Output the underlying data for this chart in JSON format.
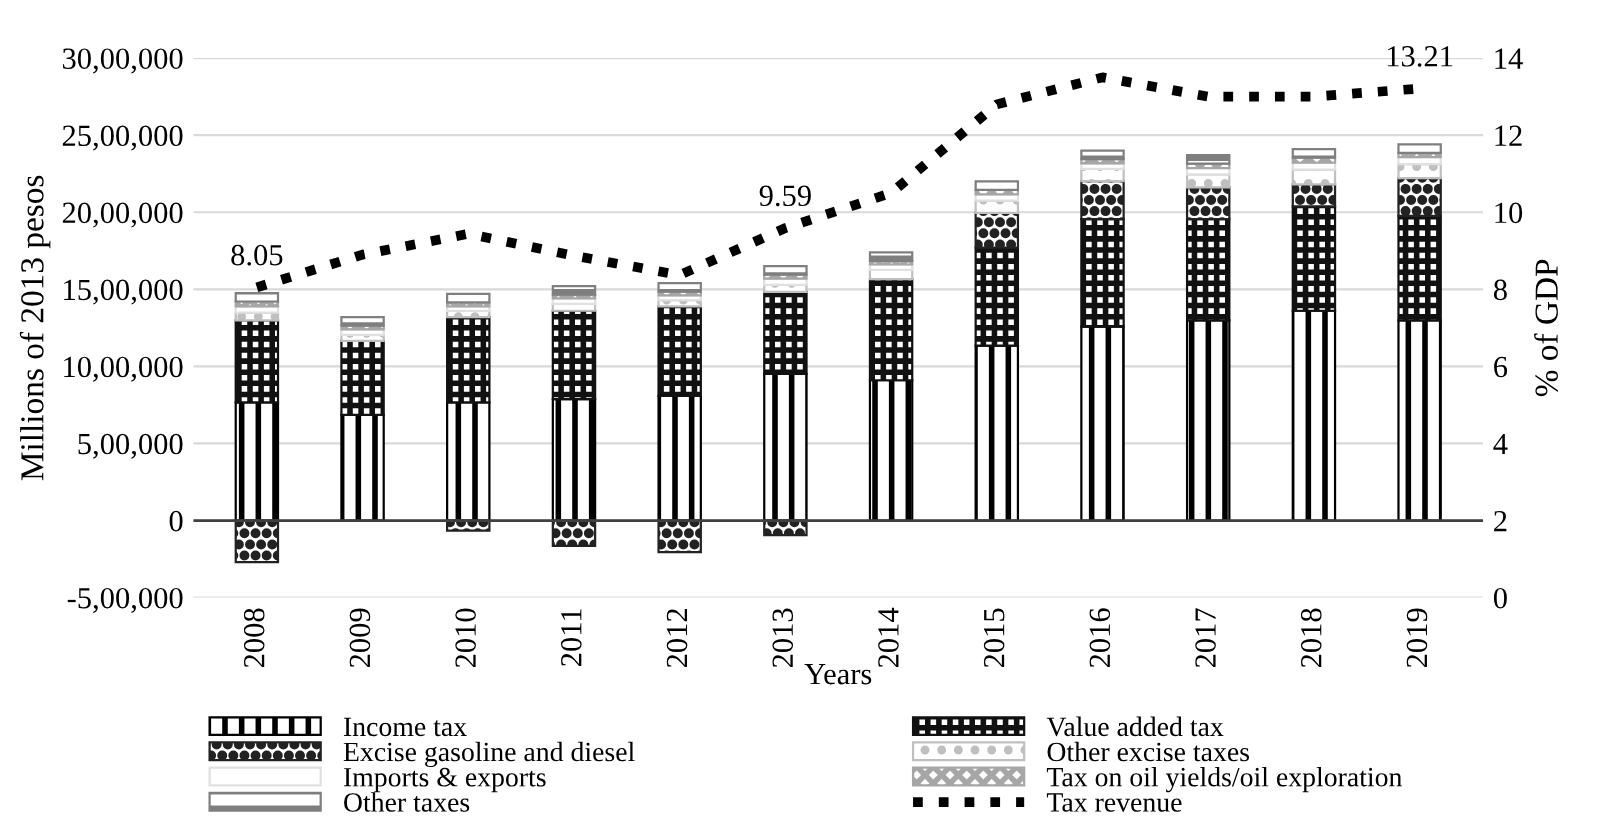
{
  "chart_data": {
    "type": "bar",
    "stacked": true,
    "xlabel": "Years",
    "ylabel": "Millions of 2013 pesos",
    "y2label": "% of GDP",
    "categories": [
      "2008",
      "2009",
      "2010",
      "2011",
      "2012",
      "2013",
      "2014",
      "2015",
      "2016",
      "2017",
      "2018",
      "2019"
    ],
    "series": [
      {
        "name": "Income tax",
        "color": "#000000",
        "values": [
          766000,
          685000,
          766000,
          787000,
          808000,
          951000,
          910000,
          1135000,
          1258000,
          1299000,
          1361000,
          1299000
        ]
      },
      {
        "name": "Value added tax",
        "color": "#111111",
        "values": [
          533000,
          480000,
          554000,
          574000,
          582000,
          533000,
          656000,
          636000,
          698000,
          657000,
          677000,
          677000
        ]
      },
      {
        "name": "Excise gasoline and diesel",
        "color": "#222222",
        "values": [
          -270000,
          0,
          -65000,
          -164000,
          -205000,
          -95000,
          0,
          225000,
          246000,
          205000,
          143000,
          246000
        ]
      },
      {
        "name": "Other excise taxes",
        "color": "#bfbfbf",
        "values": [
          50000,
          40000,
          40000,
          45000,
          40000,
          45000,
          60000,
          80000,
          80000,
          85000,
          95000,
          90000
        ]
      },
      {
        "name": "Imports & exports",
        "color": "#e0e0e0",
        "values": [
          40000,
          35000,
          30000,
          35000,
          30000,
          40000,
          35000,
          40000,
          35000,
          40000,
          45000,
          45000
        ]
      },
      {
        "name": "Tax on oil yields/oil exploration",
        "color": "#a6a6a6",
        "values": [
          32000,
          25000,
          25000,
          24000,
          25000,
          26000,
          24000,
          29000,
          28000,
          29000,
          34000,
          28000
        ]
      },
      {
        "name": "Other taxes",
        "color": "#7f7f7f",
        "values": [
          55000,
          55000,
          55000,
          55000,
          55000,
          55000,
          55000,
          55000,
          55000,
          55000,
          55000,
          55000
        ]
      },
      {
        "name": "Tax revenue",
        "type": "line",
        "axis": "y2",
        "color": "#000000",
        "line_style": "dotted",
        "marker": "none",
        "values": [
          8.05,
          8.9,
          9.44,
          8.87,
          8.37,
          9.59,
          10.5,
          12.8,
          13.5,
          13.0,
          13.0,
          13.21
        ],
        "value_labels": [
          "8.05",
          null,
          null,
          null,
          null,
          "9.59",
          null,
          null,
          null,
          null,
          null,
          "13.21"
        ]
      }
    ],
    "ylim": [
      -500000,
      3000000
    ],
    "yticks": [
      {
        "value": -500000,
        "label": "-5,00,000"
      },
      {
        "value": 0,
        "label": "0"
      },
      {
        "value": 500000,
        "label": "5,00,000"
      },
      {
        "value": 1000000,
        "label": "10,00,000"
      },
      {
        "value": 1500000,
        "label": "15,00,000"
      },
      {
        "value": 2000000,
        "label": "20,00,000"
      },
      {
        "value": 2500000,
        "label": "25,00,000"
      },
      {
        "value": 3000000,
        "label": "30,00,000"
      }
    ],
    "y2lim": [
      0,
      14
    ],
    "y2ticks": [
      0,
      2,
      4,
      6,
      8,
      10,
      12,
      14
    ],
    "grid": "y",
    "legend": "bottom"
  }
}
